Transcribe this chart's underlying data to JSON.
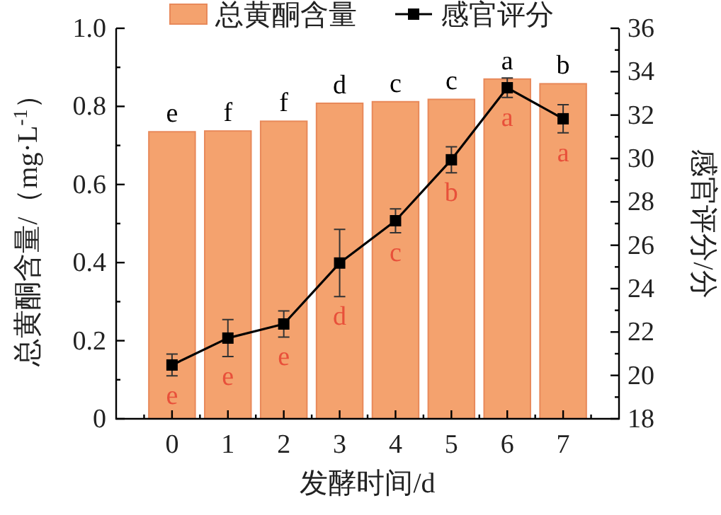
{
  "chart_data": {
    "type": "bar",
    "xlabel": "发酵时间/d",
    "ylabel": "总黄酮含量/（mg·L$^{-1}$）",
    "y2label": "感官评分/分",
    "categories": [
      "0",
      "1",
      "2",
      "3",
      "4",
      "5",
      "6",
      "7"
    ],
    "series": [
      {
        "name": "总黄酮含量",
        "color": "#f4a26e",
        "values": [
          0.735,
          0.737,
          0.762,
          0.808,
          0.812,
          0.818,
          0.87,
          0.858
        ],
        "value_labels": [
          "e",
          "f",
          "f",
          "d",
          "c",
          "c",
          "a",
          "b"
        ]
      },
      {
        "name": "感官评分",
        "type": "line",
        "axis": "y2",
        "color": "#000000",
        "marker": "square",
        "values": [
          20.48,
          21.72,
          22.37,
          25.18,
          27.13,
          29.94,
          33.26,
          31.83
        ],
        "errors": [
          0.5,
          0.85,
          0.6,
          1.55,
          0.55,
          0.6,
          0.45,
          0.65
        ],
        "value_labels": [
          "e",
          "e",
          "e",
          "d",
          "c",
          "b",
          "a",
          "a"
        ]
      }
    ],
    "ylim": [
      0,
      1
    ],
    "yticks": [
      0,
      0.2,
      0.4,
      0.6,
      {
        "value": 0.8,
        "label": "0.8"
      },
      {
        "value": 1,
        "label": "1.0"
      }
    ],
    "y2lim": [
      18,
      36
    ],
    "y2ticks": [
      18,
      20,
      22,
      24,
      26,
      28,
      30,
      32,
      34,
      36
    ],
    "legend": "top",
    "grid": false
  }
}
